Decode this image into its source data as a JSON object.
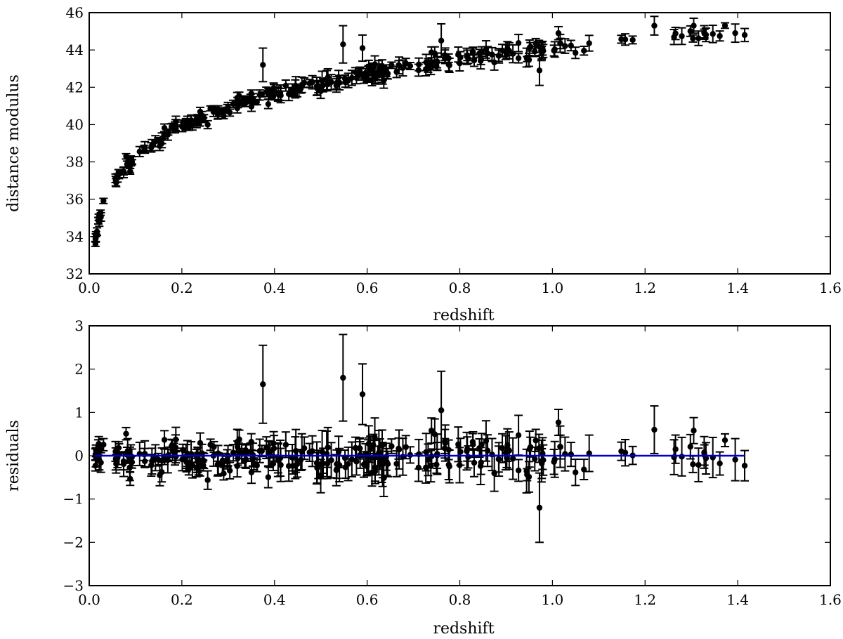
{
  "chart_data": [
    {
      "type": "scatter",
      "title": "",
      "xlabel": "redshift",
      "ylabel": "distance modulus",
      "xlim": [
        0.0,
        1.6
      ],
      "ylim": [
        32,
        46
      ],
      "xticks": [
        "0.0",
        "0.2",
        "0.4",
        "0.6",
        "0.8",
        "1.0",
        "1.2",
        "1.4",
        "1.6"
      ],
      "yticks": [
        "32",
        "34",
        "36",
        "38",
        "40",
        "42",
        "44",
        "46"
      ],
      "grid": false,
      "error_bars": true,
      "color": "#000000",
      "model": "mu = 5*log10(dL) + 25, flat LCDM-like curve, scatter with error bars",
      "highlights": [
        {
          "x": 0.375,
          "y": 43.2,
          "err": 0.9
        },
        {
          "x": 0.548,
          "y": 44.3,
          "err": 1.0
        },
        {
          "x": 0.59,
          "y": 44.1,
          "err": 0.7
        },
        {
          "x": 0.76,
          "y": 44.5,
          "err": 0.9
        },
        {
          "x": 0.972,
          "y": 42.9,
          "err": 0.8
        },
        {
          "x": 1.013,
          "y": 44.9,
          "err": 0.35
        },
        {
          "x": 1.22,
          "y": 45.3,
          "err": 0.5
        },
        {
          "x": 1.305,
          "y": 45.3,
          "err": 0.4
        },
        {
          "x": 1.415,
          "y": 44.8,
          "err": 0.35
        }
      ]
    },
    {
      "type": "scatter",
      "title": "",
      "xlabel": "redshift",
      "ylabel": "residuals",
      "xlim": [
        0.0,
        1.6
      ],
      "ylim": [
        -3,
        3
      ],
      "xticks": [
        "0.0",
        "0.2",
        "0.4",
        "0.6",
        "0.8",
        "1.0",
        "1.2",
        "1.4",
        "1.6"
      ],
      "yticks": [
        "−3",
        "−2",
        "−1",
        "0",
        "1",
        "2",
        "3"
      ],
      "grid": false,
      "error_bars": true,
      "color": "#000000",
      "fit_line": {
        "y": 0,
        "x_range": [
          0.01,
          1.415
        ],
        "color": "#0000cc"
      },
      "highlights": [
        {
          "x": 0.375,
          "y": 1.65,
          "err": 0.9
        },
        {
          "x": 0.548,
          "y": 1.8,
          "err": 1.0
        },
        {
          "x": 0.59,
          "y": 1.42,
          "err": 0.7
        },
        {
          "x": 0.76,
          "y": 1.05,
          "err": 0.9
        },
        {
          "x": 0.972,
          "y": -1.2,
          "err": 0.8
        },
        {
          "x": 1.013,
          "y": 0.77,
          "err": 0.3
        },
        {
          "x": 1.22,
          "y": 0.6,
          "err": 0.55
        },
        {
          "x": 1.305,
          "y": 0.58,
          "err": 0.3
        },
        {
          "x": 1.415,
          "y": -0.23,
          "err": 0.35
        }
      ]
    }
  ]
}
